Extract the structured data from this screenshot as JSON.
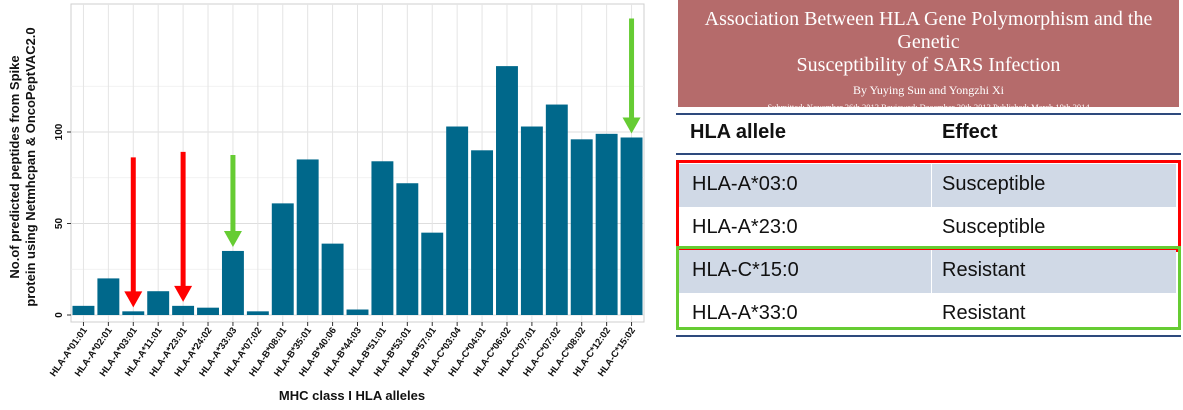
{
  "chart_data": {
    "type": "bar",
    "ylabel": "No.of predicted peptides from Spike protein using Netmhcpan & OncoPeptVAC2.0",
    "ylabel_line1": "No.of predicted peptides from Spike",
    "ylabel_line2": "protein using Netmhcpan & OncoPeptVAC2.0",
    "xlabel": "MHC class I HLA alleles",
    "ylim": [
      0,
      140
    ],
    "yticks": [
      0,
      50,
      100
    ],
    "grid": true,
    "bar_color": "#00688b",
    "categories": [
      "HLA-A*01:01",
      "HLA-A*02:01",
      "HLA-A*03:01",
      "HLA-A*11:01",
      "HLA-A*23:01",
      "HLA-A*24:02",
      "HLA-A*33:03",
      "HLA-A*07:02",
      "HLA-B*08:01",
      "HLA-B*35:01",
      "HLA-B*40:06",
      "HLA-B*44:03",
      "HLA-B*51:01",
      "HLA-B*53:01",
      "HLA-B*57:01",
      "HLA-C*03:04",
      "HLA-C*04:01",
      "HLA-C*06:02",
      "HLA-C*07:01",
      "HLA-C*07:02",
      "HLA-C*08:02",
      "HLA-C*12:02",
      "HLA-C*15:02"
    ],
    "values": [
      5,
      20,
      2,
      13,
      5,
      4,
      35,
      2,
      61,
      85,
      39,
      3,
      84,
      72,
      45,
      103,
      90,
      136,
      103,
      115,
      96,
      99,
      97
    ],
    "arrows": [
      {
        "category": "HLA-A*03:01",
        "color": "#ff0000"
      },
      {
        "category": "HLA-A*23:01",
        "color": "#ff0000"
      },
      {
        "category": "HLA-A*33:03",
        "color": "#66cc33"
      },
      {
        "category": "HLA-C*15:02",
        "color": "#66cc33"
      }
    ]
  },
  "paper": {
    "title_line1": "Association Between HLA Gene Polymorphism and the Genetic",
    "title_line2": "Susceptibility of SARS Infection",
    "authors": "By Yuying Sun and Yongzhi Xi",
    "dates": "Submitted: November 26th 2013  Reviewed: December 20th 2013  Published: March 19th 2014",
    "background_color": "#b56b6b"
  },
  "table": {
    "headers": [
      "HLA allele",
      "Effect"
    ],
    "rows": [
      {
        "allele": "HLA-A*03:0",
        "effect": "Susceptible"
      },
      {
        "allele": "HLA-A*23:0",
        "effect": "Susceptible"
      },
      {
        "allele": "HLA-C*15:0",
        "effect": "Resistant"
      },
      {
        "allele": "HLA-A*33:0",
        "effect": "Resistant"
      }
    ],
    "susceptible_box_color": "#ff0000",
    "resistant_box_color": "#66cc33",
    "row_shade_color": "#d0d9e6"
  }
}
